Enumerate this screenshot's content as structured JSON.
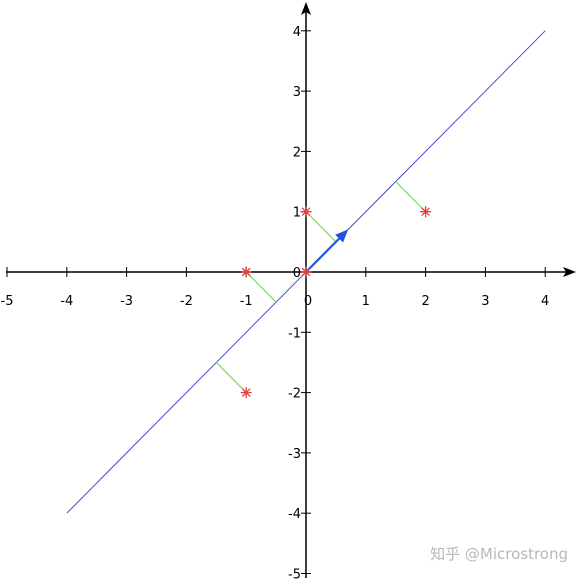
{
  "chart_data": {
    "type": "scatter",
    "xlim": [
      -5,
      4
    ],
    "ylim": [
      -5,
      4
    ],
    "x_ticks": [
      -5,
      -4,
      -3,
      -2,
      -1,
      0,
      1,
      2,
      3,
      4
    ],
    "y_ticks": [
      -5,
      -4,
      -3,
      -2,
      -1,
      0,
      1,
      2,
      3,
      4
    ],
    "x_tick_labels": [
      "-5",
      "-4",
      "-3",
      "-2",
      "-1",
      "0",
      "1",
      "2",
      "3",
      "4"
    ],
    "y_tick_labels": [
      "-5",
      "-4",
      "-3",
      "-2",
      "-1",
      "0",
      "1",
      "2",
      "3",
      "4"
    ],
    "points": [
      {
        "x": -1,
        "y": 0
      },
      {
        "x": 0,
        "y": 0
      },
      {
        "x": 0,
        "y": 1
      },
      {
        "x": 2,
        "y": 1
      },
      {
        "x": -1,
        "y": -2
      }
    ],
    "line": {
      "from": [
        -4,
        -4
      ],
      "to": [
        4,
        4
      ]
    },
    "vector": {
      "from": [
        0,
        0
      ],
      "to": [
        0.707,
        0.707
      ]
    },
    "projections": [
      {
        "from": [
          -1,
          0
        ],
        "to": [
          -0.5,
          -0.5
        ]
      },
      {
        "from": [
          0,
          1
        ],
        "to": [
          0.5,
          0.5
        ]
      },
      {
        "from": [
          2,
          1
        ],
        "to": [
          1.5,
          1.5
        ]
      },
      {
        "from": [
          -1,
          -2
        ],
        "to": [
          -1.5,
          -1.5
        ]
      }
    ],
    "grid": false,
    "colors": {
      "points": "#e04040",
      "line": "#4b4bd6",
      "vector": "#1f55e0",
      "projections": "#86d86a",
      "axes": "#000000"
    }
  },
  "watermark": "知乎 @Microstrong"
}
